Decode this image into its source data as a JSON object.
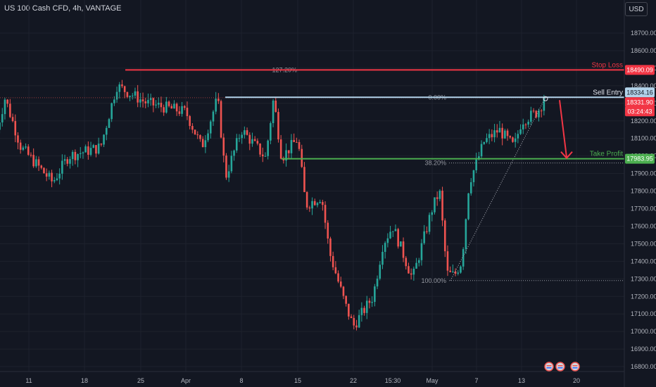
{
  "header": {
    "title": "US 100 Cash CFD, 4h, VANTAGE",
    "currency_button": "USD"
  },
  "price_axis": {
    "ticks": [
      "18700.00",
      "18600.00",
      "18500.00",
      "18400.00",
      "18300.00",
      "18200.00",
      "18100.00",
      "18000.00",
      "17900.00",
      "17800.00",
      "17700.00",
      "17600.00",
      "17500.00",
      "17400.00",
      "17300.00",
      "17200.00",
      "17100.00",
      "17000.00",
      "16900.00",
      "16800.00"
    ],
    "tags": {
      "stop_loss": "18490.09",
      "sell_entry": "18334.16",
      "current_price": "18331.90",
      "countdown": "03:24:43",
      "take_profit": "17983.95"
    }
  },
  "time_axis": {
    "ticks": [
      "11",
      "18",
      "25",
      "Apr",
      "8",
      "15",
      "22",
      "15:30",
      "May",
      "7",
      "13",
      "20"
    ]
  },
  "annotations": {
    "stop_loss": "Stop Loss",
    "sell_entry": "Sell Entry",
    "take_profit": "Take Profit",
    "fib_127": "127.20%",
    "fib_0": "0.00%",
    "fib_38": "38.20%",
    "fib_100": "100.00%"
  },
  "colors": {
    "background": "#131722",
    "bull": "#26a69a",
    "bear": "#ef5350",
    "stop_loss": "#f23645",
    "take_profit": "#4caf50",
    "entry": "#b2d3ea",
    "grid": "#1e222d"
  },
  "icons": [
    "flag-us-icon",
    "flag-us-icon",
    "flag-us-icon"
  ],
  "chart_data": {
    "type": "candlestick",
    "title": "US 100 Cash CFD, 4h, VANTAGE",
    "ylim": [
      16760,
      18800
    ],
    "levels": [
      {
        "name": "Stop Loss",
        "value": 18490.09
      },
      {
        "name": "Sell Entry",
        "value": 18334.16
      },
      {
        "name": "Take Profit",
        "value": 17983.95
      }
    ],
    "fibonacci": [
      {
        "label": "127.20%",
        "value": 18490
      },
      {
        "label": "0.00%",
        "value": 18334
      },
      {
        "label": "38.20%",
        "value": 17960
      },
      {
        "label": "100.00%",
        "value": 17290
      }
    ],
    "close_path": [
      {
        "x": "Mar 7",
        "y": 18150
      },
      {
        "x": "Mar 8",
        "y": 18330
      },
      {
        "x": "Mar 10",
        "y": 18050
      },
      {
        "x": "Mar 14",
        "y": 17850
      },
      {
        "x": "Mar 16",
        "y": 18000
      },
      {
        "x": "Mar 20",
        "y": 18050
      },
      {
        "x": "Mar 22",
        "y": 18400
      },
      {
        "x": "Mar 26",
        "y": 18300
      },
      {
        "x": "Apr 1",
        "y": 18250
      },
      {
        "x": "Apr 3",
        "y": 18050
      },
      {
        "x": "Apr 5",
        "y": 18330
      },
      {
        "x": "Apr 6",
        "y": 17880
      },
      {
        "x": "Apr 8",
        "y": 18150
      },
      {
        "x": "Apr 11",
        "y": 17990
      },
      {
        "x": "Apr 12",
        "y": 18330
      },
      {
        "x": "Apr 13",
        "y": 17990
      },
      {
        "x": "Apr 15",
        "y": 18100
      },
      {
        "x": "Apr 16",
        "y": 17720
      },
      {
        "x": "Apr 18",
        "y": 17770
      },
      {
        "x": "Apr 19",
        "y": 17450
      },
      {
        "x": "Apr 21",
        "y": 17150
      },
      {
        "x": "Apr 22",
        "y": 17030
      },
      {
        "x": "Apr 24",
        "y": 17200
      },
      {
        "x": "Apr 25",
        "y": 17500
      },
      {
        "x": "Apr 26",
        "y": 17600
      },
      {
        "x": "Apr 28",
        "y": 17300
      },
      {
        "x": "Apr 30",
        "y": 17700
      },
      {
        "x": "May 1",
        "y": 17800
      },
      {
        "x": "May 2",
        "y": 17330
      },
      {
        "x": "May 3",
        "y": 17320
      },
      {
        "x": "May 4",
        "y": 17400
      },
      {
        "x": "May 5",
        "y": 17850
      },
      {
        "x": "May 6",
        "y": 17960
      },
      {
        "x": "May 7",
        "y": 18080
      },
      {
        "x": "May 9",
        "y": 18150
      },
      {
        "x": "May 11",
        "y": 18050
      },
      {
        "x": "May 12",
        "y": 18200
      },
      {
        "x": "May 14",
        "y": 18250
      },
      {
        "x": "May 15",
        "y": 18330
      }
    ]
  }
}
